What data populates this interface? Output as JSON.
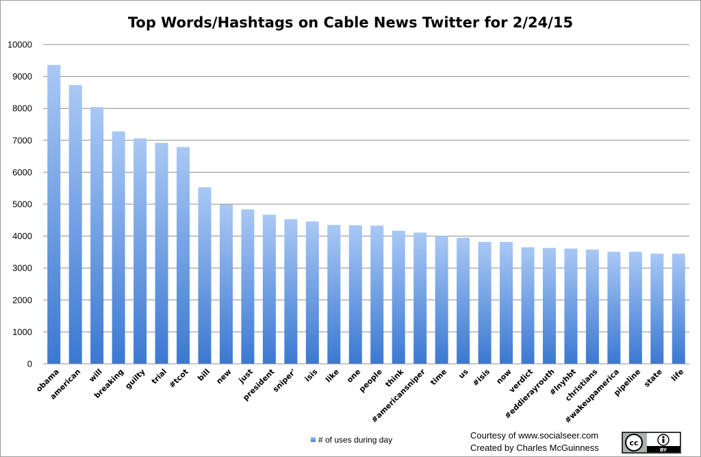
{
  "chart_data": {
    "type": "bar",
    "title": "Top Words/Hashtags on Cable News Twitter for 2/24/15",
    "xlabel": "",
    "ylabel": "",
    "ylim": [
      0,
      10000
    ],
    "yticks": [
      "0",
      "1000",
      "2000",
      "3000",
      "4000",
      "5000",
      "6000",
      "7000",
      "8000",
      "9000",
      "10000"
    ],
    "grid": true,
    "legend_position": "bottom",
    "categories": [
      "obama",
      "american",
      "will",
      "breaking",
      "guilty",
      "trial",
      "#tcot",
      "bill",
      "new",
      "just",
      "president",
      "sniper'",
      "isis",
      "like",
      "one",
      "people",
      "think",
      "#americansniper",
      "time",
      "us",
      "#isis",
      "now",
      "verdict",
      "#eddierayrouth",
      "#lnyhbt",
      "christians",
      "#wakeupamerica",
      "pipeline",
      "state",
      "life"
    ],
    "series": [
      {
        "name": "# of uses during day",
        "values": [
          9360,
          8730,
          8040,
          7280,
          7060,
          6920,
          6790,
          5530,
          4990,
          4840,
          4670,
          4530,
          4460,
          4350,
          4340,
          4330,
          4170,
          4110,
          4000,
          3950,
          3820,
          3820,
          3650,
          3630,
          3610,
          3580,
          3510,
          3510,
          3450,
          3450
        ]
      }
    ],
    "colors": {
      "bar_top": "#a9c8f5",
      "bar_bottom": "#3b78d2",
      "grid": "#8c8c8c"
    }
  },
  "credits": {
    "line1": "Courtesy of www.socialseer.com",
    "line2": "Created by Charles McGuinness"
  },
  "license_badge": {
    "cc": "cc",
    "by": "BY",
    "icon": "creative-commons-by-icon"
  }
}
